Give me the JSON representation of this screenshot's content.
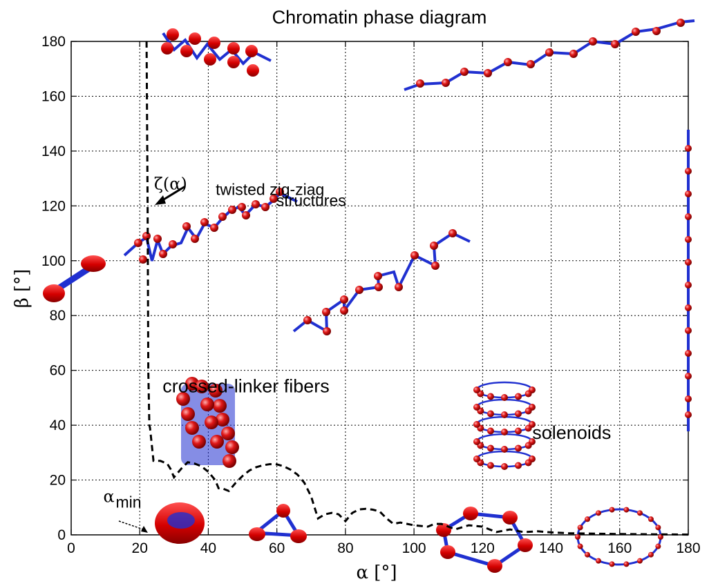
{
  "chart_data": {
    "type": "line",
    "title": "Chromatin phase diagram",
    "xlabel": "α [°]",
    "ylabel": "β [°]",
    "xlim": [
      0,
      180
    ],
    "ylim": [
      0,
      180
    ],
    "xticks": [
      0,
      20,
      40,
      60,
      80,
      100,
      120,
      140,
      160,
      180
    ],
    "yticks": [
      0,
      20,
      40,
      60,
      80,
      100,
      120,
      140,
      160,
      180
    ],
    "grid": true,
    "legend": "none",
    "series": [
      {
        "style": "dashed",
        "color": "#000000",
        "x": [
          22,
          22.3,
          22.5,
          22.8,
          23,
          24,
          26,
          28,
          29,
          30,
          32,
          34,
          36,
          38,
          40,
          42,
          43,
          44,
          46,
          48,
          50,
          52,
          54,
          56,
          58,
          60,
          62,
          64,
          66,
          68,
          70,
          71,
          72,
          74,
          76,
          78,
          80,
          82,
          84,
          86,
          88,
          90,
          92,
          94,
          96,
          98,
          100,
          104,
          106,
          108,
          112,
          116,
          120,
          124,
          128,
          132,
          136,
          140,
          145,
          150,
          160,
          170,
          180
        ],
        "y": [
          180,
          120,
          60,
          40,
          39,
          27,
          27,
          26,
          24,
          21,
          24,
          26.5,
          26,
          25,
          23,
          20,
          17,
          17,
          16,
          19,
          21.5,
          23.5,
          24.7,
          25.4,
          25.8,
          25.7,
          25,
          23.8,
          22,
          19,
          14,
          10,
          6,
          7.5,
          8,
          7.5,
          5,
          8,
          9.3,
          9.5,
          9.2,
          8.5,
          6,
          4,
          4.5,
          4,
          3.5,
          3,
          4,
          4,
          2,
          3.5,
          3,
          1,
          2,
          1,
          1.3,
          0.9,
          0.6,
          0.5,
          0.3,
          0.2,
          0.1
        ]
      }
    ],
    "annotations": [
      {
        "text": "twisted zig-ziag",
        "x": 58,
        "y": 124
      },
      {
        "text": "structures",
        "x": 70,
        "y": 120
      },
      {
        "text": "ζ(α)",
        "x": 29,
        "y": 126
      },
      {
        "text": "crossed-linker fibers",
        "x": 51,
        "y": 52
      },
      {
        "text": "solenoids",
        "x": 146,
        "y": 35
      },
      {
        "text": "α",
        "x": 11,
        "y": 12
      },
      {
        "text": "min",
        "x": 13,
        "y": 10
      }
    ]
  }
}
